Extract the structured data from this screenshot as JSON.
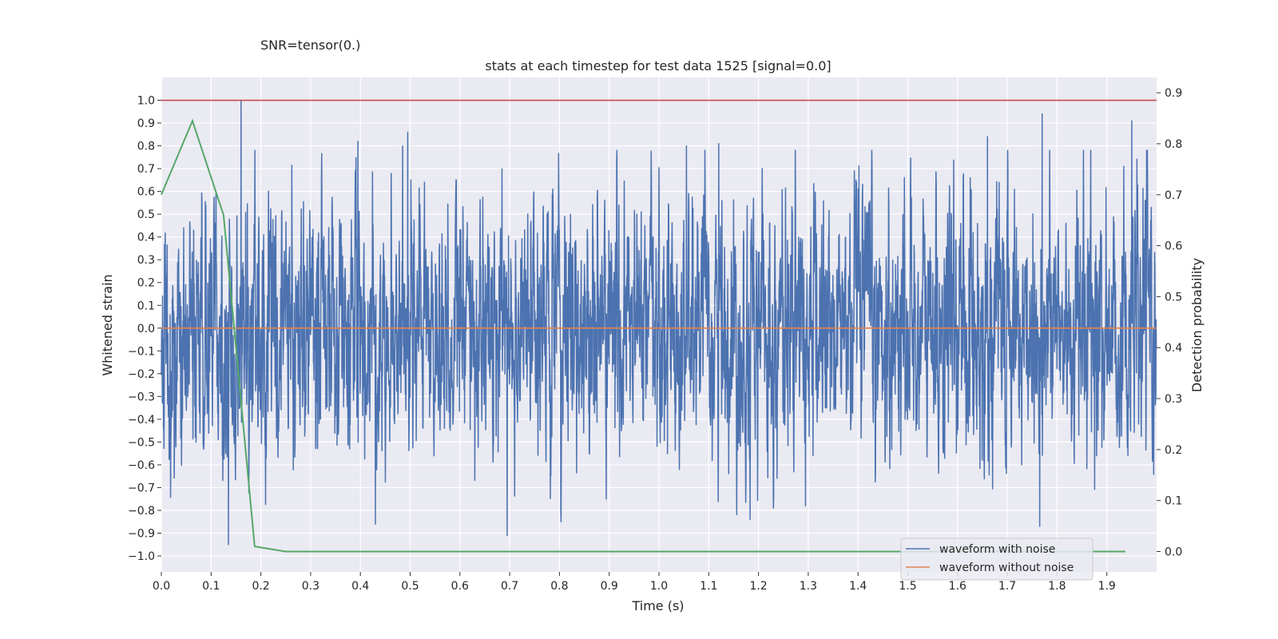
{
  "suptitle": "SNR=tensor(0.)",
  "chart_data": {
    "type": "line",
    "title": "stats at each timestep for test data 1525 [signal=0.0]",
    "xlabel": "Time (s)",
    "ylabel": "Whitened strain",
    "ylabel_right": "Detection probability",
    "xlim": [
      0.0,
      2.0
    ],
    "ylim": [
      -1.07,
      1.1
    ],
    "ylim_right": [
      -0.04,
      0.93
    ],
    "x_ticks": [
      "0.0",
      "0.1",
      "0.2",
      "0.3",
      "0.4",
      "0.5",
      "0.6",
      "0.7",
      "0.8",
      "0.9",
      "1.0",
      "1.1",
      "1.2",
      "1.3",
      "1.4",
      "1.5",
      "1.6",
      "1.7",
      "1.8",
      "1.9"
    ],
    "y_ticks": [
      "1.0",
      "0.9",
      "0.8",
      "0.7",
      "0.6",
      "0.5",
      "0.4",
      "0.3",
      "0.2",
      "0.1",
      "0.0",
      "−0.1",
      "−0.2",
      "−0.3",
      "−0.4",
      "−0.5",
      "−0.6",
      "−0.7",
      "−0.8",
      "−0.9",
      "−1.0"
    ],
    "y_ticks_right": [
      "0.9",
      "0.8",
      "0.7",
      "0.6",
      "0.5",
      "0.4",
      "0.3",
      "0.2",
      "0.1",
      "0.0"
    ],
    "legend": {
      "position": "lower right",
      "entries": [
        "waveform with noise",
        "waveform without noise"
      ]
    },
    "grid": true,
    "colors": {
      "noisy": "#4c72b0",
      "clean": "#dd8452",
      "probability": "#55a868",
      "threshold": "#c44e52",
      "background": "#eaeaf2"
    },
    "series": [
      {
        "name": "waveform with noise",
        "axis": "left",
        "sample_rate": 2048,
        "duration": 2.0,
        "amplitude_std": 0.27,
        "peak_values": [
          {
            "x": 0.16,
            "y": 1.0
          },
          {
            "x": 0.135,
            "y": -0.95
          },
          {
            "x": 0.395,
            "y": 0.82
          },
          {
            "x": 0.485,
            "y": 0.8
          },
          {
            "x": 0.495,
            "y": 0.86
          },
          {
            "x": 0.43,
            "y": -0.86
          },
          {
            "x": 0.695,
            "y": -0.91
          },
          {
            "x": 1.055,
            "y": 0.8
          },
          {
            "x": 1.12,
            "y": 0.81
          },
          {
            "x": 1.23,
            "y": -0.79
          },
          {
            "x": 1.66,
            "y": 0.84
          },
          {
            "x": 1.77,
            "y": 0.94
          },
          {
            "x": 1.765,
            "y": -0.87
          },
          {
            "x": 1.95,
            "y": 0.91
          }
        ]
      },
      {
        "name": "waveform without noise",
        "axis": "left",
        "x": [
          0.0,
          2.0
        ],
        "y": [
          0.0,
          0.0
        ]
      },
      {
        "axis": "right",
        "x": [
          0.0,
          0.0625,
          0.125,
          0.1875,
          0.25,
          0.3125,
          1.9375
        ],
        "y": [
          0.7,
          0.845,
          0.66,
          0.01,
          0.0,
          0.0,
          0.0
        ]
      },
      {
        "axis": "left",
        "x": [
          0.0,
          2.0
        ],
        "y": [
          1.0,
          1.0
        ]
      }
    ]
  }
}
